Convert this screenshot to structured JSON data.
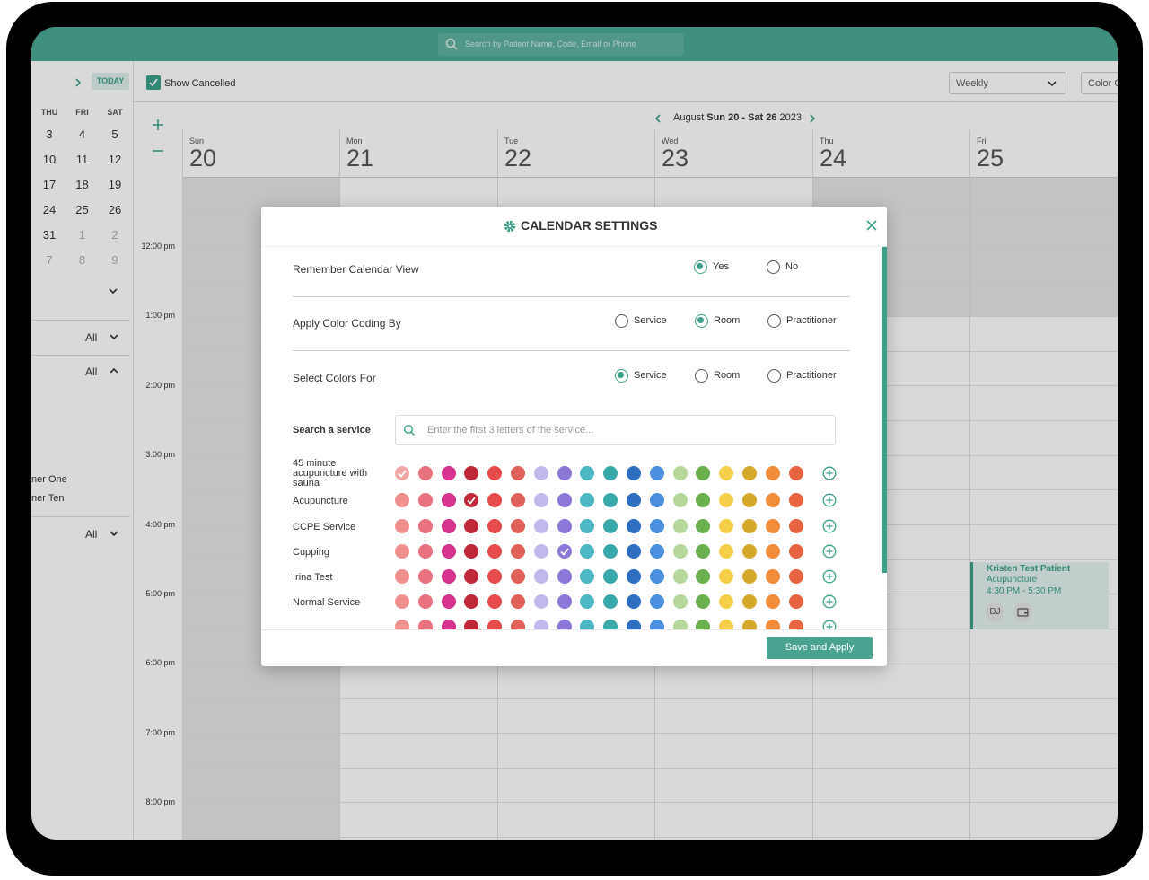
{
  "top_bar": {
    "search_placeholder": "Search by Patient Name, Code, Email or Phone"
  },
  "toolbar": {
    "today": "TODAY",
    "show_cancelled": "Show Cancelled",
    "show_cancelled_checked": true,
    "view": "Weekly",
    "color_button": "Color C"
  },
  "mini_calendar": {
    "weekdays": [
      "THU",
      "FRI",
      "SAT"
    ],
    "weeks": [
      [
        3,
        4,
        5
      ],
      [
        10,
        11,
        12
      ],
      [
        17,
        18,
        19
      ],
      [
        24,
        25,
        26
      ],
      [
        31,
        1,
        2
      ],
      [
        7,
        8,
        9
      ]
    ]
  },
  "sidebar": {
    "filters": [
      "All",
      "All",
      "All"
    ],
    "list": [
      "ner One",
      "ner Ten"
    ]
  },
  "week_nav": {
    "month": "August",
    "range": "Sun 20 - Sat 26",
    "year": "2023"
  },
  "days": [
    {
      "weekday": "Sun",
      "date": 20
    },
    {
      "weekday": "Mon",
      "date": 21
    },
    {
      "weekday": "Tue",
      "date": 22
    },
    {
      "weekday": "Wed",
      "date": 23
    },
    {
      "weekday": "Thu",
      "date": 24
    },
    {
      "weekday": "Fri",
      "date": 25
    }
  ],
  "times": [
    "12:00 pm",
    "1:00 pm",
    "2:00 pm",
    "3:00 pm",
    "4:00 pm",
    "5:00 pm",
    "6:00 pm",
    "7:00 pm",
    "8:00 pm"
  ],
  "appointment": {
    "patient": "Kristen Test Patient",
    "service": "Acupuncture",
    "time": "4:30 PM - 5:30 PM",
    "initials": "DJ"
  },
  "modal": {
    "title": "CALENDAR SETTINGS",
    "settings": [
      {
        "label": "Remember Calendar View",
        "options": [
          "Yes",
          "No"
        ],
        "selected": 0
      },
      {
        "label": "Apply Color Coding By",
        "options": [
          "Service",
          "Room",
          "Practitioner"
        ],
        "selected": 1
      },
      {
        "label": "Select Colors For",
        "options": [
          "Service",
          "Room",
          "Practitioner"
        ],
        "selected": 0
      }
    ],
    "search_label": "Search a service",
    "search_placeholder": "Enter the first 3 letters of the service...",
    "palette": [
      "#f0918f",
      "#e8737f",
      "#d8338f",
      "#c0283a",
      "#e84b4b",
      "#e0605a",
      "#c3b8ec",
      "#8d77d6",
      "#4bb8c4",
      "#3aa9a9",
      "#2f6fbf",
      "#4a8fe0",
      "#b5d89a",
      "#6ab04c",
      "#f5cf4a",
      "#d4a82a",
      "#f08c3a",
      "#e8633f"
    ],
    "services": [
      {
        "name": "45 minute acupuncture with sauna",
        "selected_color": 0
      },
      {
        "name": "Acupuncture",
        "selected_color": 3
      },
      {
        "name": "CCPE Service"
      },
      {
        "name": "Cupping",
        "selected_color": 7
      },
      {
        "name": "Irina Test"
      },
      {
        "name": "Normal Service"
      }
    ],
    "save_button": "Save and Apply"
  }
}
